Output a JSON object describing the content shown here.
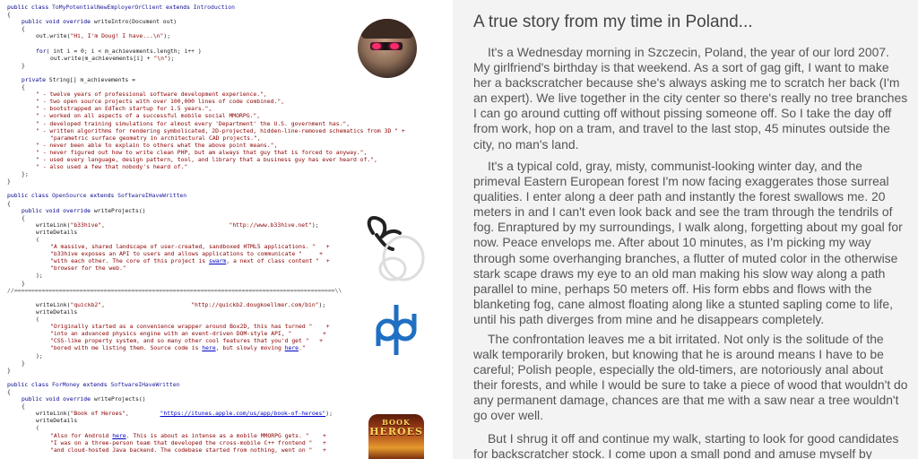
{
  "code_lines": [
    {
      "indent": 0,
      "segments": [
        {
          "t": "public class ",
          "c": "kw"
        },
        {
          "t": "ToMyPotentialNewEmployerOrClient",
          "c": "cls"
        },
        {
          "t": " extends ",
          "c": "kw"
        },
        {
          "t": "Introduction",
          "c": "cls"
        }
      ]
    },
    {
      "indent": 0,
      "segments": [
        {
          "t": "{",
          "c": ""
        }
      ]
    },
    {
      "indent": 1,
      "segments": [
        {
          "t": "public void override ",
          "c": "kw"
        },
        {
          "t": "writeIntro(Document out)",
          "c": ""
        }
      ]
    },
    {
      "indent": 1,
      "segments": [
        {
          "t": "{",
          "c": ""
        }
      ]
    },
    {
      "indent": 2,
      "segments": [
        {
          "t": "out.write(",
          "c": ""
        },
        {
          "t": "\"Hi, I'm Doug! I have...\\n\"",
          "c": "str"
        },
        {
          "t": ");",
          "c": ""
        }
      ]
    },
    {
      "indent": 0,
      "segments": []
    },
    {
      "indent": 2,
      "segments": [
        {
          "t": "for",
          "c": "kw"
        },
        {
          "t": "( int i = 0; i < m_achievements.length; i++ )",
          "c": ""
        }
      ]
    },
    {
      "indent": 3,
      "segments": [
        {
          "t": "out.write(m_achievements[i] + ",
          "c": ""
        },
        {
          "t": "\"\\n\"",
          "c": "str"
        },
        {
          "t": ");",
          "c": ""
        }
      ]
    },
    {
      "indent": 1,
      "segments": [
        {
          "t": "}",
          "c": ""
        }
      ]
    },
    {
      "indent": 0,
      "segments": []
    },
    {
      "indent": 1,
      "segments": [
        {
          "t": "private ",
          "c": "kw"
        },
        {
          "t": "String[] m_achievements =",
          "c": ""
        }
      ]
    },
    {
      "indent": 1,
      "segments": [
        {
          "t": "{",
          "c": ""
        }
      ]
    },
    {
      "indent": 2,
      "segments": [
        {
          "t": "\" - twelve years of professional software development experience.\",",
          "c": "str"
        }
      ]
    },
    {
      "indent": 2,
      "segments": [
        {
          "t": "\" - two open source projects with over 100,000 lines of code combined.\",",
          "c": "str"
        }
      ]
    },
    {
      "indent": 2,
      "segments": [
        {
          "t": "\" - bootstrapped an EdTech startup for 1.5 years.\",",
          "c": "str"
        }
      ]
    },
    {
      "indent": 2,
      "segments": [
        {
          "t": "\" - worked on all aspects of a successful mobile social MMORPG.\",",
          "c": "str"
        }
      ]
    },
    {
      "indent": 2,
      "segments": [
        {
          "t": "\" - developed training simulations for almost every 'Department' the U.S. government has.\",",
          "c": "str"
        }
      ]
    },
    {
      "indent": 2,
      "segments": [
        {
          "t": "\" - written algorithms for rendering symbolicated, 2D-projected, hidden-line-removed schematics from 3D \" +",
          "c": "str"
        }
      ]
    },
    {
      "indent": 3,
      "segments": [
        {
          "t": "\"parametric surface geometry in architectural CAD projects.\",",
          "c": "str"
        }
      ]
    },
    {
      "indent": 2,
      "segments": [
        {
          "t": "\" - never been able to explain to others what the above point means.\",",
          "c": "str"
        }
      ]
    },
    {
      "indent": 2,
      "segments": [
        {
          "t": "\" - never figured out how to write clean PHP, but am always that guy that is forced to anyway.\",",
          "c": "str"
        }
      ]
    },
    {
      "indent": 2,
      "segments": [
        {
          "t": "\" - used every language, design pattern, tool, and library that a business guy has ever heard of.\",",
          "c": "str"
        }
      ]
    },
    {
      "indent": 2,
      "segments": [
        {
          "t": "\" - also used a few that nobody's heard of.\"",
          "c": "str"
        }
      ]
    },
    {
      "indent": 1,
      "segments": [
        {
          "t": "};",
          "c": ""
        }
      ]
    },
    {
      "indent": 0,
      "segments": [
        {
          "t": "}",
          "c": ""
        }
      ]
    },
    {
      "indent": 0,
      "segments": []
    },
    {
      "indent": 0,
      "segments": [
        {
          "t": "public class ",
          "c": "kw"
        },
        {
          "t": "OpenSource",
          "c": "cls"
        },
        {
          "t": " extends ",
          "c": "kw"
        },
        {
          "t": "SoftwareIHaveWritten",
          "c": "cls"
        }
      ]
    },
    {
      "indent": 0,
      "segments": [
        {
          "t": "{",
          "c": ""
        }
      ]
    },
    {
      "indent": 1,
      "segments": [
        {
          "t": "public void override ",
          "c": "kw"
        },
        {
          "t": "writeProjects()",
          "c": ""
        }
      ]
    },
    {
      "indent": 1,
      "segments": [
        {
          "t": "{",
          "c": ""
        }
      ]
    },
    {
      "indent": 2,
      "segments": [
        {
          "t": "writeLink(",
          "c": ""
        },
        {
          "t": "\"b33hive\",",
          "c": "str"
        },
        {
          "t": "                                    ",
          "c": ""
        },
        {
          "t": "\"http://www.b33hive.net\"",
          "c": "str"
        },
        {
          "t": ");",
          "c": ""
        }
      ]
    },
    {
      "indent": 2,
      "segments": [
        {
          "t": "writeDetails",
          "c": ""
        }
      ]
    },
    {
      "indent": 2,
      "segments": [
        {
          "t": "(",
          "c": ""
        }
      ]
    },
    {
      "indent": 3,
      "segments": [
        {
          "t": "\"A massive, shared landscape of user-created, sandboxed HTML5 applications. \"   +",
          "c": "str"
        }
      ]
    },
    {
      "indent": 3,
      "segments": [
        {
          "t": "\"b33hive exposes an API to users and allows applications to communicate \"     +",
          "c": "str"
        }
      ]
    },
    {
      "indent": 3,
      "segments": [
        {
          "t": "\"with each other. The core of this project is ",
          "c": "str"
        },
        {
          "t": "swarm",
          "c": "lnk"
        },
        {
          "t": ", a next of class content \"  +",
          "c": "str"
        }
      ]
    },
    {
      "indent": 3,
      "segments": [
        {
          "t": "\"browser for the web.\"",
          "c": "str"
        }
      ]
    },
    {
      "indent": 2,
      "segments": [
        {
          "t": ");",
          "c": ""
        }
      ]
    },
    {
      "indent": 1,
      "segments": [
        {
          "t": "}",
          "c": ""
        }
      ]
    },
    {
      "indent": 0,
      "segments": [
        {
          "t": "//=============================================================================================\\\\",
          "c": "cmt"
        }
      ]
    },
    {
      "indent": 0,
      "segments": []
    },
    {
      "indent": 2,
      "segments": [
        {
          "t": "writeLink(",
          "c": ""
        },
        {
          "t": "\"quickb2\",",
          "c": "str"
        },
        {
          "t": "                         ",
          "c": ""
        },
        {
          "t": "\"http://quickb2.dougkoellmer.com/bin\"",
          "c": "str"
        },
        {
          "t": ");",
          "c": ""
        }
      ]
    },
    {
      "indent": 2,
      "segments": [
        {
          "t": "writeDetails",
          "c": ""
        }
      ]
    },
    {
      "indent": 2,
      "segments": [
        {
          "t": "(",
          "c": ""
        }
      ]
    },
    {
      "indent": 3,
      "segments": [
        {
          "t": "\"Originally started as a convenience wrapper around Box2D, this has turned \"    +",
          "c": "str"
        }
      ]
    },
    {
      "indent": 3,
      "segments": [
        {
          "t": "\"into an advanced physics engine with an event-driven DOM-style API, \"         +",
          "c": "str"
        }
      ]
    },
    {
      "indent": 3,
      "segments": [
        {
          "t": "\"CSS-like property system, and so many other cool features that you'd get \"   +",
          "c": "str"
        }
      ]
    },
    {
      "indent": 3,
      "segments": [
        {
          "t": "\"bored with me listing them. Source code is ",
          "c": "str"
        },
        {
          "t": "here",
          "c": "lnk"
        },
        {
          "t": ", but slowly moving ",
          "c": "str"
        },
        {
          "t": "here",
          "c": "lnk"
        },
        {
          "t": ".\"",
          "c": "str"
        }
      ]
    },
    {
      "indent": 2,
      "segments": [
        {
          "t": ");",
          "c": ""
        }
      ]
    },
    {
      "indent": 1,
      "segments": [
        {
          "t": "}",
          "c": ""
        }
      ]
    },
    {
      "indent": 0,
      "segments": [
        {
          "t": "}",
          "c": ""
        }
      ]
    },
    {
      "indent": 0,
      "segments": []
    },
    {
      "indent": 0,
      "segments": [
        {
          "t": "public class ",
          "c": "kw"
        },
        {
          "t": "ForMoney",
          "c": "cls"
        },
        {
          "t": " extends ",
          "c": "kw"
        },
        {
          "t": "SoftwareIHaveWritten",
          "c": "cls"
        }
      ]
    },
    {
      "indent": 0,
      "segments": [
        {
          "t": "{",
          "c": ""
        }
      ]
    },
    {
      "indent": 1,
      "segments": [
        {
          "t": "public void override ",
          "c": "kw"
        },
        {
          "t": "writeProjects()",
          "c": ""
        }
      ]
    },
    {
      "indent": 1,
      "segments": [
        {
          "t": "{",
          "c": ""
        }
      ]
    },
    {
      "indent": 2,
      "segments": [
        {
          "t": "writeLink(",
          "c": ""
        },
        {
          "t": "\"Book of Heroes\",",
          "c": "str"
        },
        {
          "t": "         ",
          "c": ""
        },
        {
          "t": "\"https://itunes.apple.com/us/app/book-of-heroes\"",
          "c": "lnk"
        },
        {
          "t": ");",
          "c": ""
        }
      ]
    },
    {
      "indent": 2,
      "segments": [
        {
          "t": "writeDetails",
          "c": ""
        }
      ]
    },
    {
      "indent": 2,
      "segments": [
        {
          "t": "(",
          "c": ""
        }
      ]
    },
    {
      "indent": 3,
      "segments": [
        {
          "t": "\"Also for Android ",
          "c": "str"
        },
        {
          "t": "here",
          "c": "lnk"
        },
        {
          "t": ". This is about as intense as a mobile MMORPG gets. \"    +",
          "c": "str"
        }
      ]
    },
    {
      "indent": 3,
      "segments": [
        {
          "t": "\"I was on a three-person team that developed the cross-mobile C++ frontend \"   +",
          "c": "str"
        }
      ]
    },
    {
      "indent": 3,
      "segments": [
        {
          "t": "\"and cloud-hosted Java backend. The codebase started from nothing, went on \"   +",
          "c": "str"
        }
      ]
    }
  ],
  "story": {
    "title": "A true story from my time in Poland...",
    "paragraphs": [
      "It's a Wednesday morning in Szczecin, Poland, the year of our lord 2007. My girlfriend's birthday is that weekend. As a sort of gag gift, I want to make her a backscratcher because she's always asking me to scratch her back (I'm an expert). We live together in the city center so there's really no tree branches I can go around cutting off without pissing someone off. So I take the day off from work, hop on a tram, and travel to the last stop, 45 minutes outside the city, no man's land.",
      "It's a typical cold, gray, misty, communist-looking winter day, and the primeval Eastern European forest I'm now facing exaggerates those surreal qualities. I enter along a deer path and instantly the forest swallows me. 20 meters in and I can't even look back and see the tram through the tendrils of fog. Enraptured by my surroundings, I walk along, forgetting about my goal for now. Peace envelops me. After about 10 minutes, as I'm picking my way through some overhanging branches, a flutter of muted color in the otherwise stark scape draws my eye to an old man making his slow way along a path parallel to mine, perhaps 50 meters off. His form ebbs and flows with the blanketing fog, cane almost floating along like a stunted sapling come to life, until his path diverges from mine and he disappears completely.",
      "The confrontation leaves me a bit irritated. Not only is the solitude of the walk temporarily broken, but knowing that he is around means I have to be careful; Polish people, especially the old-timers, are notoriously anal about their forests, and while I would be sure to take a piece of wood that wouldn't do any permanent damage, chances are that me with a saw near a tree wouldn't go over well.",
      "But I shrug it off and continue my walk, starting to look for good candidates for backscratcher stock. I come upon a small pond and amuse myself by"
    ]
  },
  "logos": {
    "heroes_line1": "BOOK",
    "heroes_line2": "HEROES"
  }
}
